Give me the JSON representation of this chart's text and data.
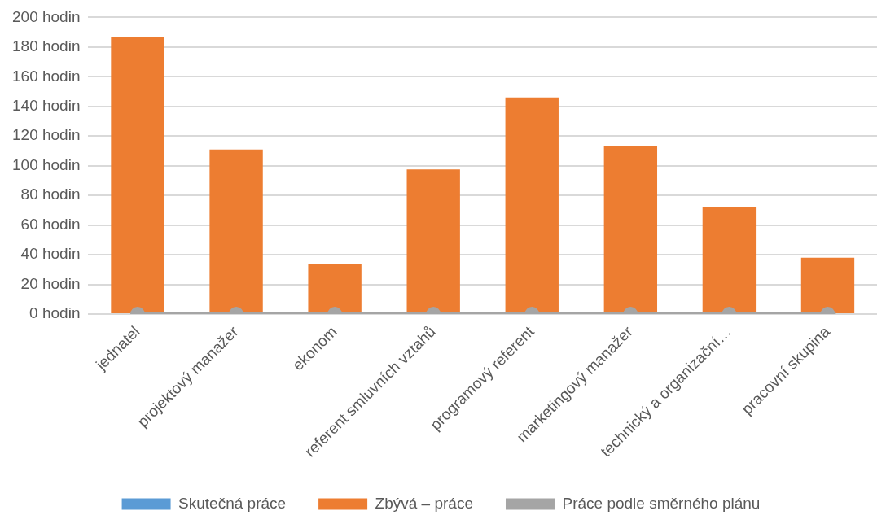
{
  "chart_data": {
    "type": "bar",
    "stacked": true,
    "categories": [
      "jednatel",
      "projektový manažer",
      "ekonom",
      "referent smluvních vztahů",
      "programový referent",
      "marketingový manažer",
      "technický a organizační…",
      "pracovní skupina"
    ],
    "series": [
      {
        "name": "Skutečná práce",
        "color": "#5b9bd5",
        "values": [
          0,
          0,
          0,
          0,
          0,
          0,
          0,
          0
        ]
      },
      {
        "name": "Zbývá – práce",
        "color": "#ed7d31",
        "values": [
          187,
          111,
          34,
          97.5,
          146,
          113,
          72,
          38
        ]
      },
      {
        "name": "Práce podle směrného plánu",
        "type": "line",
        "color": "#a5a5a5",
        "marker": "circle",
        "values": [
          0,
          0,
          0,
          0,
          0,
          0,
          0,
          0
        ]
      }
    ],
    "ylim": [
      0,
      200
    ],
    "yticks": [
      {
        "value": 0,
        "label": "0 hodin"
      },
      {
        "value": 20,
        "label": "20 hodin"
      },
      {
        "value": 40,
        "label": "40 hodin"
      },
      {
        "value": 60,
        "label": "60 hodin"
      },
      {
        "value": 80,
        "label": "80 hodin"
      },
      {
        "value": 100,
        "label": "100 hodin"
      },
      {
        "value": 120,
        "label": "120 hodin"
      },
      {
        "value": 140,
        "label": "140 hodin"
      },
      {
        "value": 160,
        "label": "160 hodin"
      },
      {
        "value": 180,
        "label": "180 hodin"
      },
      {
        "value": 200,
        "label": "200 hodin"
      }
    ],
    "grid": "y",
    "legend": "bottom"
  }
}
